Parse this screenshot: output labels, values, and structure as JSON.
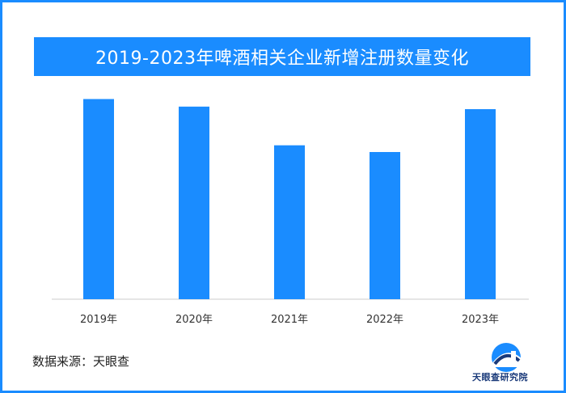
{
  "chart_data": {
    "type": "bar",
    "title": "2019-2023年啤酒相关企业新增注册数量变化",
    "categories": [
      "2019年",
      "2020年",
      "2021年",
      "2022年",
      "2023年"
    ],
    "values": [
      238,
      229,
      183,
      175,
      226
    ],
    "ylim": [
      0,
      250
    ],
    "grid": false,
    "color": "#1a8cff"
  },
  "source": "数据来源：天眼查",
  "logo": {
    "icon": "tianyancha-logo-icon",
    "text": "天眼查研究院"
  }
}
